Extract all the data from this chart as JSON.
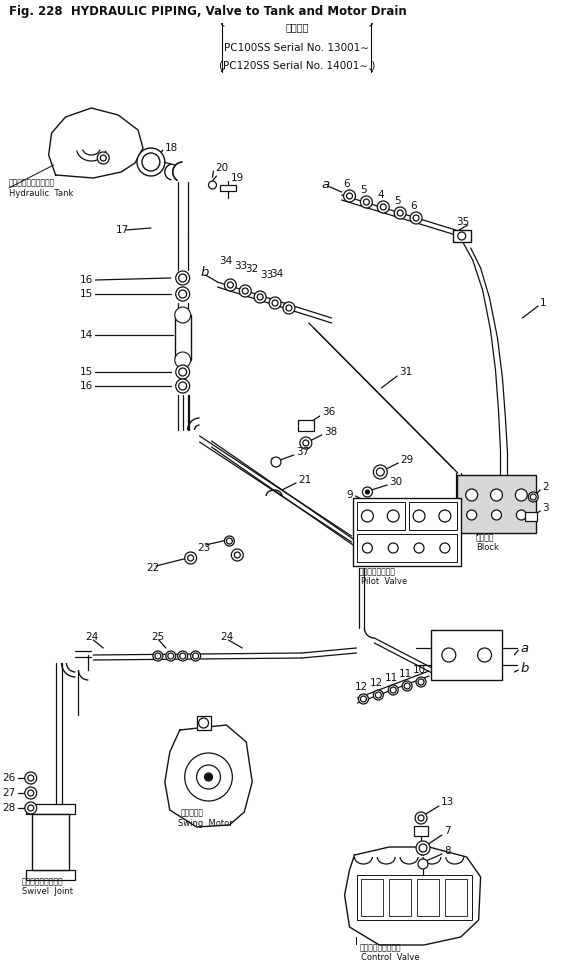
{
  "title1": "Fig. 228  HYDRAULIC PIPING, Valve to Tank and Motor Drain",
  "title_jp": "適用号機",
  "title3": "PC100SS Serial No. 13001∼",
  "title4": "(PC120SS Serial No. 14001∼ )",
  "bg": "#ffffff",
  "lc": "#111111",
  "fs": 7.5,
  "fs_sm": 5.5,
  "fs_med": 6.5
}
